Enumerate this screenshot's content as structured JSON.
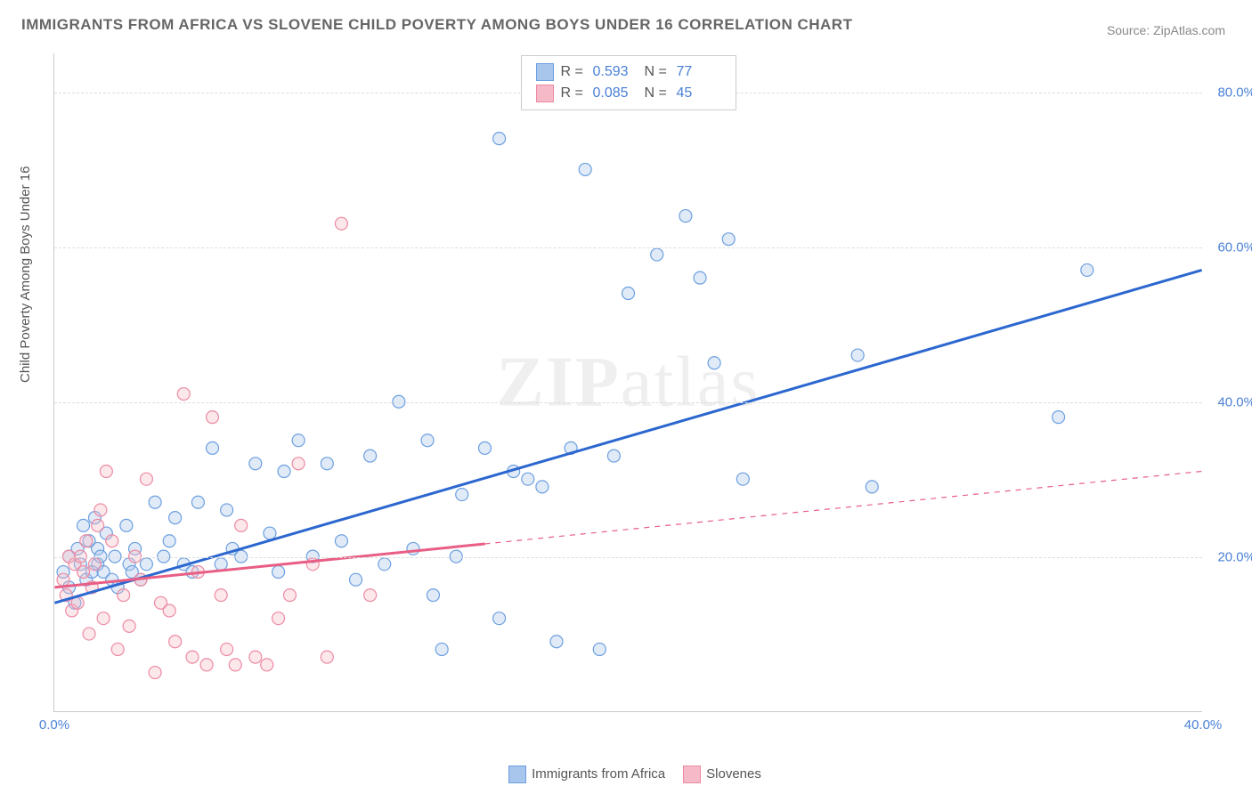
{
  "title": "IMMIGRANTS FROM AFRICA VS SLOVENE CHILD POVERTY AMONG BOYS UNDER 16 CORRELATION CHART",
  "source_label": "Source: ZipAtlas.com",
  "ylabel": "Child Poverty Among Boys Under 16",
  "watermark": "ZIPatlas",
  "chart": {
    "type": "scatter",
    "background_color": "#ffffff",
    "grid_color": "#dddddd",
    "axis_color": "#cccccc",
    "xlim": [
      0,
      40
    ],
    "ylim": [
      0,
      85
    ],
    "xtick_labels": [
      "0.0%",
      "40.0%"
    ],
    "xtick_positions": [
      0,
      40
    ],
    "ytick_labels": [
      "20.0%",
      "40.0%",
      "60.0%",
      "80.0%"
    ],
    "ytick_positions": [
      20,
      40,
      60,
      80
    ],
    "marker_radius": 7,
    "marker_fill_opacity": 0.35,
    "line_width_main": 3,
    "line_width_extrap": 1.2,
    "series": [
      {
        "name": "Immigrants from Africa",
        "color_fill": "#a8c5ec",
        "color_stroke": "#6c9fe0",
        "line_color": "#2b67cf",
        "R": "0.593",
        "N": "77",
        "fit": {
          "x1": 0,
          "y1": 14,
          "x2": 40,
          "y2": 57,
          "solid_to_x": 40
        },
        "points": [
          [
            0.3,
            18
          ],
          [
            0.5,
            16
          ],
          [
            0.5,
            20
          ],
          [
            0.7,
            14
          ],
          [
            0.8,
            21
          ],
          [
            0.9,
            19
          ],
          [
            1.0,
            24
          ],
          [
            1.1,
            17
          ],
          [
            1.2,
            22
          ],
          [
            1.3,
            18
          ],
          [
            1.4,
            25
          ],
          [
            1.5,
            21
          ],
          [
            1.5,
            19
          ],
          [
            1.6,
            20
          ],
          [
            1.7,
            18
          ],
          [
            1.8,
            23
          ],
          [
            2.0,
            17
          ],
          [
            2.1,
            20
          ],
          [
            2.2,
            16
          ],
          [
            2.5,
            24
          ],
          [
            2.6,
            19
          ],
          [
            2.7,
            18
          ],
          [
            2.8,
            21
          ],
          [
            3.0,
            17
          ],
          [
            3.2,
            19
          ],
          [
            3.5,
            27
          ],
          [
            3.8,
            20
          ],
          [
            4.0,
            22
          ],
          [
            4.2,
            25
          ],
          [
            4.5,
            19
          ],
          [
            4.8,
            18
          ],
          [
            5.0,
            27
          ],
          [
            5.5,
            34
          ],
          [
            5.8,
            19
          ],
          [
            6.0,
            26
          ],
          [
            6.2,
            21
          ],
          [
            6.5,
            20
          ],
          [
            7.0,
            32
          ],
          [
            7.5,
            23
          ],
          [
            7.8,
            18
          ],
          [
            8.0,
            31
          ],
          [
            8.5,
            35
          ],
          [
            9.0,
            20
          ],
          [
            9.5,
            32
          ],
          [
            10.0,
            22
          ],
          [
            10.5,
            17
          ],
          [
            11.0,
            33
          ],
          [
            11.5,
            19
          ],
          [
            12.0,
            40
          ],
          [
            12.5,
            21
          ],
          [
            13.0,
            35
          ],
          [
            13.2,
            15
          ],
          [
            13.5,
            8
          ],
          [
            14.0,
            20
          ],
          [
            14.2,
            28
          ],
          [
            15.0,
            34
          ],
          [
            15.5,
            12
          ],
          [
            15.5,
            74
          ],
          [
            16.0,
            31
          ],
          [
            16.5,
            30
          ],
          [
            17.0,
            29
          ],
          [
            17.5,
            9
          ],
          [
            18.0,
            34
          ],
          [
            18.5,
            70
          ],
          [
            19.0,
            8
          ],
          [
            19.5,
            33
          ],
          [
            20.0,
            54
          ],
          [
            21.0,
            59
          ],
          [
            22.0,
            64
          ],
          [
            22.5,
            56
          ],
          [
            23.0,
            45
          ],
          [
            23.5,
            61
          ],
          [
            24.0,
            30
          ],
          [
            28.0,
            46
          ],
          [
            28.5,
            29
          ],
          [
            35.0,
            38
          ],
          [
            36.0,
            57
          ]
        ]
      },
      {
        "name": "Slovenes",
        "color_fill": "#f5b9c7",
        "color_stroke": "#ed8aa3",
        "line_color": "#e85e85",
        "R": "0.085",
        "N": "45",
        "fit": {
          "x1": 0,
          "y1": 16,
          "x2": 40,
          "y2": 31,
          "solid_to_x": 15
        },
        "points": [
          [
            0.3,
            17
          ],
          [
            0.4,
            15
          ],
          [
            0.5,
            20
          ],
          [
            0.6,
            13
          ],
          [
            0.7,
            19
          ],
          [
            0.8,
            14
          ],
          [
            0.9,
            20
          ],
          [
            1.0,
            18
          ],
          [
            1.1,
            22
          ],
          [
            1.2,
            10
          ],
          [
            1.3,
            16
          ],
          [
            1.4,
            19
          ],
          [
            1.5,
            24
          ],
          [
            1.6,
            26
          ],
          [
            1.7,
            12
          ],
          [
            1.8,
            31
          ],
          [
            2.0,
            22
          ],
          [
            2.2,
            8
          ],
          [
            2.4,
            15
          ],
          [
            2.6,
            11
          ],
          [
            2.8,
            20
          ],
          [
            3.0,
            17
          ],
          [
            3.2,
            30
          ],
          [
            3.5,
            5
          ],
          [
            3.7,
            14
          ],
          [
            4.0,
            13
          ],
          [
            4.2,
            9
          ],
          [
            4.5,
            41
          ],
          [
            4.8,
            7
          ],
          [
            5.0,
            18
          ],
          [
            5.3,
            6
          ],
          [
            5.5,
            38
          ],
          [
            5.8,
            15
          ],
          [
            6.0,
            8
          ],
          [
            6.3,
            6
          ],
          [
            6.5,
            24
          ],
          [
            7.0,
            7
          ],
          [
            7.4,
            6
          ],
          [
            7.8,
            12
          ],
          [
            8.2,
            15
          ],
          [
            8.5,
            32
          ],
          [
            9.0,
            19
          ],
          [
            9.5,
            7
          ],
          [
            10.0,
            63
          ],
          [
            11.0,
            15
          ]
        ]
      }
    ]
  },
  "bottom_legend": [
    {
      "label": "Immigrants from Africa",
      "fill": "#a8c5ec",
      "stroke": "#6c9fe0"
    },
    {
      "label": "Slovenes",
      "fill": "#f5b9c7",
      "stroke": "#ed8aa3"
    }
  ]
}
